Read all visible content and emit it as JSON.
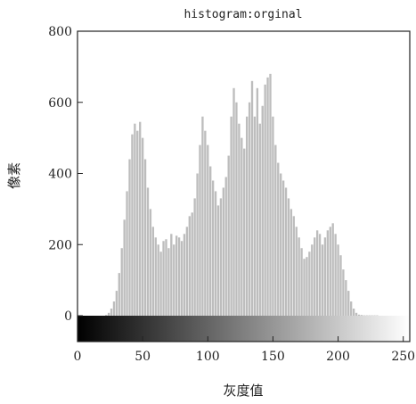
{
  "chart_data": {
    "type": "bar",
    "title": "histogram:orginal",
    "xlabel": "灰度值",
    "ylabel": "像素",
    "xlim": [
      0,
      255
    ],
    "ylim": [
      0,
      800
    ],
    "x_ticks": [
      "0",
      "50",
      "100",
      "150",
      "200",
      "250"
    ],
    "y_ticks": [
      "0",
      "200",
      "400",
      "600",
      "800"
    ],
    "x_tick_values": [
      0,
      50,
      100,
      150,
      200,
      250
    ],
    "y_tick_values": [
      0,
      200,
      400,
      600,
      800
    ],
    "grid": false,
    "legend": "none",
    "bar_color": "#bdbdbd",
    "colorbar": {
      "from": "#000000",
      "to": "#ffffff"
    },
    "x": [
      22,
      24,
      26,
      28,
      30,
      32,
      34,
      36,
      38,
      40,
      42,
      44,
      46,
      48,
      50,
      52,
      54,
      56,
      58,
      60,
      62,
      64,
      66,
      68,
      70,
      72,
      74,
      76,
      78,
      80,
      82,
      84,
      86,
      88,
      90,
      92,
      94,
      96,
      98,
      100,
      102,
      104,
      106,
      108,
      110,
      112,
      114,
      116,
      118,
      120,
      122,
      124,
      126,
      128,
      130,
      132,
      134,
      136,
      138,
      140,
      142,
      144,
      146,
      148,
      150,
      152,
      154,
      156,
      158,
      160,
      162,
      164,
      166,
      168,
      170,
      172,
      174,
      176,
      178,
      180,
      182,
      184,
      186,
      188,
      190,
      192,
      194,
      196,
      198,
      200,
      202,
      204,
      206,
      208,
      210,
      212,
      214,
      216,
      218,
      220,
      222,
      224,
      226,
      228,
      230
    ],
    "values": [
      2,
      8,
      20,
      40,
      70,
      120,
      190,
      270,
      350,
      440,
      510,
      540,
      520,
      545,
      500,
      440,
      360,
      300,
      250,
      220,
      200,
      180,
      210,
      215,
      190,
      230,
      200,
      225,
      220,
      210,
      230,
      250,
      280,
      290,
      330,
      400,
      480,
      560,
      520,
      480,
      420,
      380,
      350,
      310,
      330,
      360,
      390,
      450,
      560,
      640,
      600,
      540,
      500,
      470,
      560,
      600,
      660,
      560,
      640,
      540,
      590,
      650,
      670,
      680,
      560,
      480,
      430,
      400,
      380,
      360,
      330,
      300,
      280,
      250,
      220,
      190,
      160,
      165,
      180,
      200,
      220,
      240,
      230,
      200,
      220,
      240,
      250,
      260,
      230,
      200,
      170,
      130,
      100,
      70,
      40,
      20,
      8,
      3,
      2,
      1,
      1,
      1,
      1,
      1,
      1
    ]
  }
}
